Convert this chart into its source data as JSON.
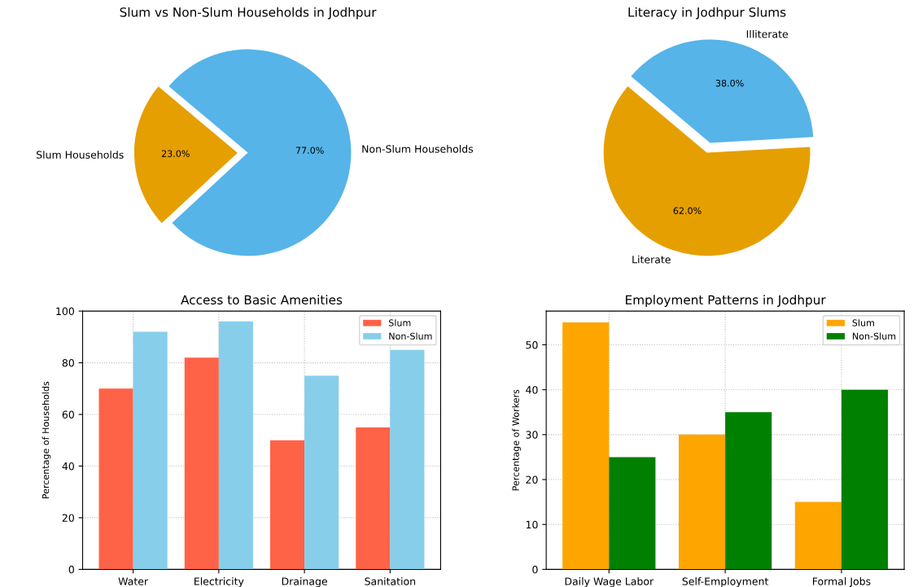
{
  "chart_data": [
    {
      "type": "pie",
      "title": "Slum vs Non-Slum Households in Jodhpur",
      "categories": [
        "Slum Households",
        "Non-Slum Households"
      ],
      "values": [
        23,
        77
      ],
      "colors": [
        "#e69f00",
        "#56b4e9"
      ],
      "value_labels": [
        "23.0%",
        "77.0%"
      ]
    },
    {
      "type": "pie",
      "title": "Literacy in Jodhpur Slums",
      "categories": [
        "Literate",
        "Illiterate"
      ],
      "values": [
        62,
        38
      ],
      "colors": [
        "#e69f00",
        "#56b4e9"
      ],
      "value_labels": [
        "62.0%",
        "38.0%"
      ]
    },
    {
      "type": "bar",
      "title": "Access to Basic Amenities",
      "ylabel": "Percentage of Households",
      "categories": [
        "Water",
        "Electricity",
        "Drainage",
        "Sanitation"
      ],
      "series": [
        {
          "name": "Slum",
          "color": "#ff6347",
          "values": [
            70,
            82,
            50,
            55
          ]
        },
        {
          "name": "Non-Slum",
          "color": "#87ceeb",
          "values": [
            92,
            96,
            75,
            85
          ]
        }
      ],
      "ylim": [
        0,
        100
      ],
      "yticks": [
        0,
        20,
        40,
        60,
        80,
        100
      ],
      "grid": true,
      "legend": "top right"
    },
    {
      "type": "bar",
      "title": "Employment Patterns in Jodhpur",
      "ylabel": "Percentage of Workers",
      "categories": [
        "Daily Wage Labor",
        "Self-Employment",
        "Formal Jobs"
      ],
      "series": [
        {
          "name": "Slum",
          "color": "#ffa500",
          "values": [
            55,
            30,
            15
          ]
        },
        {
          "name": "Non-Slum",
          "color": "#008000",
          "values": [
            25,
            35,
            40
          ]
        }
      ],
      "ylim": [
        0,
        57.5
      ],
      "yticks": [
        0,
        10,
        20,
        30,
        40,
        50
      ],
      "grid": true,
      "legend": "top right"
    }
  ]
}
